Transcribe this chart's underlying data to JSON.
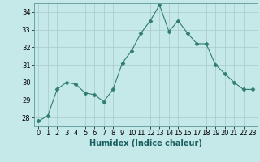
{
  "x": [
    0,
    1,
    2,
    3,
    4,
    5,
    6,
    7,
    8,
    9,
    10,
    11,
    12,
    13,
    14,
    15,
    16,
    17,
    18,
    19,
    20,
    21,
    22,
    23
  ],
  "y": [
    27.8,
    28.1,
    29.6,
    30.0,
    29.9,
    29.4,
    29.3,
    28.9,
    29.6,
    31.1,
    31.8,
    32.8,
    33.5,
    34.4,
    32.9,
    33.5,
    32.8,
    32.2,
    32.2,
    31.0,
    30.5,
    30.0,
    29.6,
    29.6
  ],
  "line_color": "#2e7d6e",
  "marker": "D",
  "marker_size": 2.5,
  "bg_color": "#c5e8e8",
  "grid_color": "#aecece",
  "xlabel": "Humidex (Indice chaleur)",
  "xlim": [
    -0.5,
    23.5
  ],
  "ylim": [
    27.5,
    34.5
  ],
  "yticks": [
    28,
    29,
    30,
    31,
    32,
    33,
    34
  ],
  "xtick_labels": [
    "0",
    "1",
    "2",
    "3",
    "4",
    "5",
    "6",
    "7",
    "8",
    "9",
    "10",
    "11",
    "12",
    "13",
    "14",
    "15",
    "16",
    "17",
    "18",
    "19",
    "20",
    "21",
    "22",
    "23"
  ],
  "tick_fontsize": 6,
  "xlabel_fontsize": 7
}
